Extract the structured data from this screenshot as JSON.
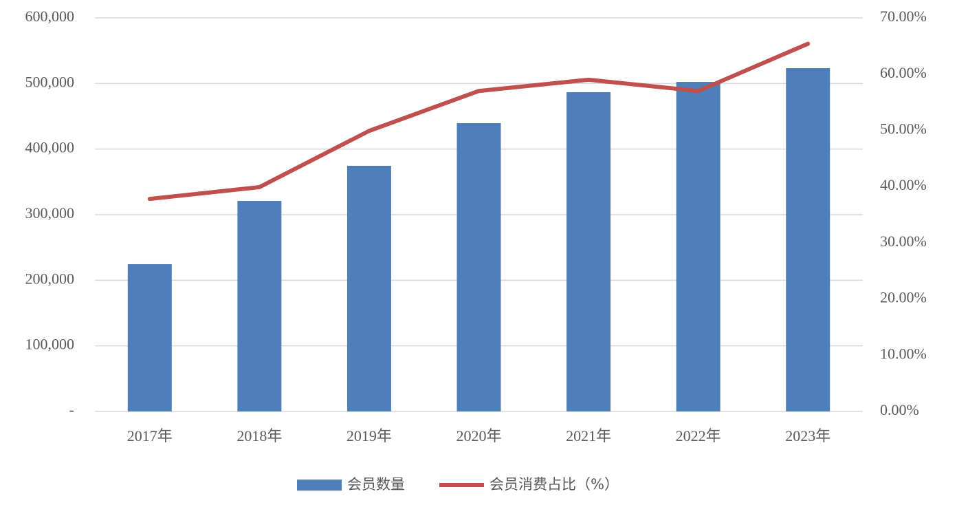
{
  "chart_data": {
    "type": "bar",
    "categories": [
      "2017年",
      "2018年",
      "2019年",
      "2020年",
      "2021年",
      "2022年",
      "2023年"
    ],
    "series": [
      {
        "name": "会员数量",
        "type": "bar",
        "color": "#4e7fba",
        "values": [
          224500,
          321000,
          374500,
          439500,
          486700,
          502400,
          523400
        ]
      },
      {
        "name": "会员消费占比（%）",
        "type": "line",
        "axis": "y2",
        "color": "#c0504d",
        "values": [
          37.8,
          39.9,
          49.9,
          57.0,
          59.0,
          57.0,
          65.4
        ]
      }
    ],
    "ylim": [
      0,
      600000
    ],
    "yticks": [
      {
        "value": 0,
        "label": "-"
      },
      {
        "value": 100000,
        "label": "100,000"
      },
      {
        "value": 200000,
        "label": "200,000"
      },
      {
        "value": 300000,
        "label": "300,000"
      },
      {
        "value": 400000,
        "label": "400,000"
      },
      {
        "value": 500000,
        "label": "500,000"
      },
      {
        "value": 600000,
        "label": "600,000"
      }
    ],
    "y2lim": [
      0,
      70
    ],
    "y2ticks": [
      {
        "value": 0,
        "label": "0.00%"
      },
      {
        "value": 10,
        "label": "10.00%"
      },
      {
        "value": 20,
        "label": "20.00%"
      },
      {
        "value": 30,
        "label": "30.00%"
      },
      {
        "value": 40,
        "label": "40.00%"
      },
      {
        "value": 50,
        "label": "50.00%"
      },
      {
        "value": 60,
        "label": "60.00%"
      },
      {
        "value": 70,
        "label": "70.00%"
      }
    ],
    "grid": true,
    "legend": "bottom"
  }
}
